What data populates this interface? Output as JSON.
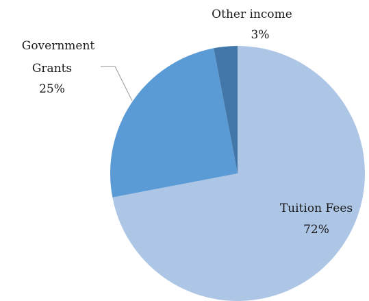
{
  "chart_data": {
    "type": "pie",
    "title": "",
    "categories": [
      "Tuition Fees",
      "Government Grants",
      "Other income"
    ],
    "values": [
      72,
      25,
      3
    ],
    "value_labels": [
      "72%",
      "25%",
      "3%"
    ],
    "colors": [
      "#aec6e6",
      "#5b9bd5",
      "#4477a9"
    ],
    "legend": "none"
  },
  "labels": {
    "tuition": {
      "line1": "Tuition Fees",
      "pct": "72%"
    },
    "grants": {
      "line1": "Government",
      "line2": "Grants",
      "pct": "25%"
    },
    "other": {
      "line1": "Other income",
      "pct": "3%"
    }
  }
}
